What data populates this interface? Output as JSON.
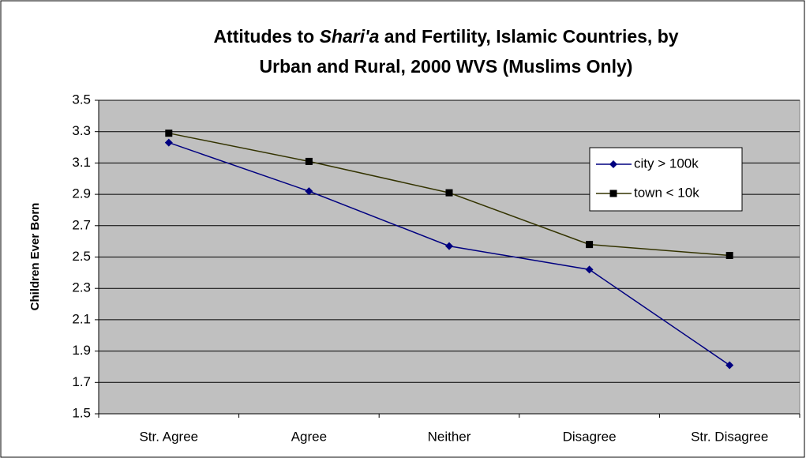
{
  "chart_data": {
    "type": "line",
    "title": [
      [
        {
          "text": "Attitudes to "
        },
        {
          "text": "Shari'a",
          "italic": true
        },
        {
          "text": " and Fertility, Islamic Countries, by"
        }
      ],
      [
        {
          "text": "Urban and Rural, 2000 WVS (Muslims Only)"
        }
      ]
    ],
    "y_label": "Children Ever Born",
    "categories": [
      "Str. Agree",
      "Agree",
      "Neither",
      "Disagree",
      "Str. Disagree"
    ],
    "series": [
      {
        "name": "city > 100k",
        "color": "#000080",
        "marker": "diamond",
        "marker_color": "#000080",
        "values": [
          3.23,
          2.92,
          2.57,
          2.42,
          1.81
        ]
      },
      {
        "name": "town < 10k",
        "color": "#333300",
        "marker": "square",
        "marker_color": "#000000",
        "values": [
          3.29,
          3.11,
          2.91,
          2.58,
          2.51
        ]
      }
    ],
    "ylim": [
      1.5,
      3.5
    ],
    "yticks": [
      1.5,
      1.7,
      1.9,
      2.1,
      2.3,
      2.5,
      2.7,
      2.9,
      3.1,
      3.3,
      3.5
    ],
    "grid": true,
    "plot_background": "#c0c0c0",
    "legend": "right"
  }
}
